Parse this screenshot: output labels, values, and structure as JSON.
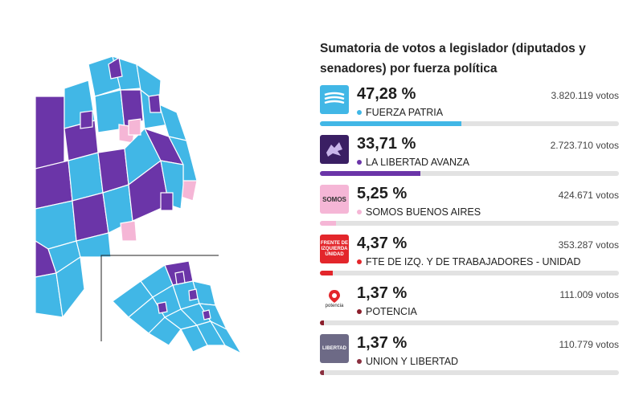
{
  "title": "Sumatoria de votos a legislador (diputados y senadores) por fuerza política",
  "colors": {
    "fuerza_patria": "#41b7e6",
    "la_libertad_avanza": "#6b35a8",
    "somos": "#f5b6d6",
    "fit": "#e3262b",
    "potencia": "#8b1e2b",
    "union_libertad": "#8a2f3f",
    "map_border": "#ffffff"
  },
  "parties": [
    {
      "key": "fuerza-patria",
      "pct": "47,28 %",
      "votes": "3.820.119 votos",
      "name": "FUERZA PATRIA",
      "dot": "#41b7e6",
      "fill": "#41b7e6",
      "share": 0.4728,
      "logo_bg": "#41b7e6",
      "logo_text": "FUERZA PATRIA",
      "icon": "flag-icon"
    },
    {
      "key": "la-libertad-avanza",
      "pct": "33,71 %",
      "votes": "2.723.710 votos",
      "name": "LA LIBERTAD AVANZA",
      "dot": "#6b35a8",
      "fill": "#6b35a8",
      "share": 0.3371,
      "logo_bg": "#3a1f63",
      "logo_text": "",
      "icon": "lion-icon"
    },
    {
      "key": "somos",
      "pct": "5,25 %",
      "votes": "424.671 votos",
      "name": "SOMOS BUENOS AIRES",
      "dot": "#f5b6d6",
      "fill": "#f5b6d6",
      "share": 0.0525,
      "logo_bg": "#f5b6d6",
      "logo_text": "SOMOS",
      "icon": "somos-logo-icon"
    },
    {
      "key": "fit",
      "pct": "4,37 %",
      "votes": "353.287 votos",
      "name": "FTE DE IZQ. Y DE TRABAJADORES - UNIDAD",
      "dot": "#e3262b",
      "fill": "#e3262b",
      "share": 0.0437,
      "logo_bg": "#e3262b",
      "logo_text": "FRENTE DE IZQUIERDA UNIDAD",
      "icon": "fit-logo-icon"
    },
    {
      "key": "potencia",
      "pct": "1,37 %",
      "votes": "111.009 votos",
      "name": "POTENCIA",
      "dot": "#8b1e2b",
      "fill": "#8b1e2b",
      "share": 0.0137,
      "logo_bg": "#ffffff",
      "logo_text": "potencia",
      "icon": "location-pin-icon"
    },
    {
      "key": "union-libertad",
      "pct": "1,37 %",
      "votes": "110.779 votos",
      "name": "UNION Y LIBERTAD",
      "dot": "#8a2f3f",
      "fill": "#8a2f3f",
      "share": 0.0137,
      "logo_bg": "#6d6a86",
      "logo_text": "LIBERTAD",
      "icon": "union-libertad-logo-icon"
    }
  ]
}
